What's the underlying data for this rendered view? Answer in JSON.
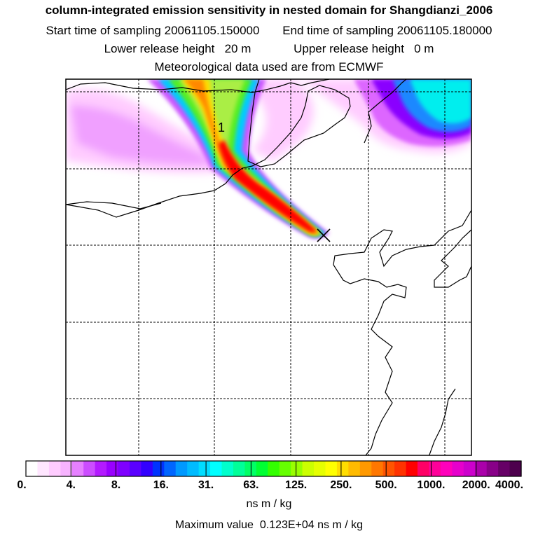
{
  "header": {
    "title": "column-integrated emission sensitivity in nested domain for Shangdianzi_2006",
    "start_label": "Start time of sampling",
    "start_value": "20061105.150000",
    "end_label": "End time of sampling",
    "end_value": "20061105.180000",
    "lower_label": "Lower release height",
    "lower_value": "20 m",
    "upper_label": "Upper release height",
    "upper_value": "0 m",
    "met_line": "Meteorological data used are from ECMWF"
  },
  "map": {
    "contour_label": "1",
    "release_marker": "X"
  },
  "colorbar": {
    "colors": [
      "#ffffff",
      "#ffe6ff",
      "#ffccff",
      "#f7b3ff",
      "#e680ff",
      "#cc4dff",
      "#b31aff",
      "#9900ff",
      "#7f00ff",
      "#5a00ff",
      "#3300ff",
      "#0033ff",
      "#0066ff",
      "#0099ff",
      "#00bbff",
      "#00ddff",
      "#00ffff",
      "#00ffcc",
      "#00ff99",
      "#00ff66",
      "#00ff33",
      "#33ff00",
      "#66ff00",
      "#99ff00",
      "#ccff00",
      "#e6ff00",
      "#ffff00",
      "#ffdd00",
      "#ffbb00",
      "#ff9900",
      "#ff7700",
      "#ff5500",
      "#ff3300",
      "#ff0000",
      "#ff0066",
      "#ff0099",
      "#ff00bb",
      "#e600cc",
      "#cc00cc",
      "#aa00aa",
      "#880088",
      "#660066",
      "#4d004d"
    ],
    "ticks": [
      "0.",
      "4.",
      "8.",
      "16.",
      "31.",
      "63.",
      "125.",
      "250.",
      "500.",
      "1000.",
      "2000.",
      "4000."
    ],
    "units": "ns m / kg"
  },
  "footer": {
    "max_label": "Maximum value",
    "max_value": "0.123E+04",
    "max_units": "ns m / kg"
  }
}
